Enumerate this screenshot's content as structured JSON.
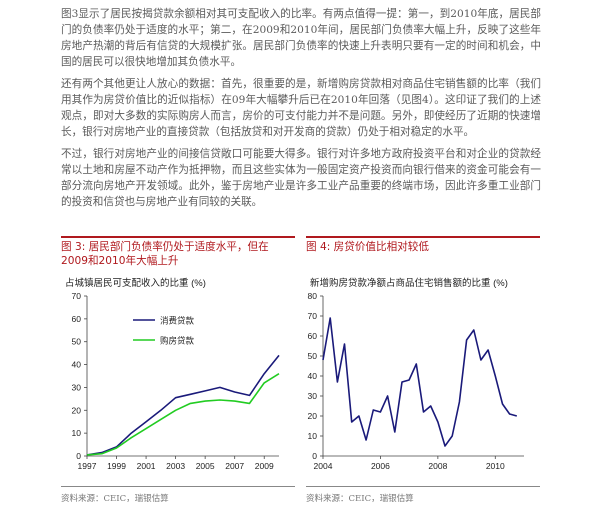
{
  "paragraphs": [
    "图3显示了居民按揭贷款余额相对其可支配收入的比率。有两点值得一提：第一，到2010年底，居民部门的负债率仍处于适度的水平；第二，在2009和2010年间，居民部门负债率大幅上升，反映了这些年房地产热潮的背后有信贷的大规模扩张。居民部门负债率的快速上升表明只要有一定的时间和机会，中国的居民可以很快地增加其负债水平。",
    "还有两个其他更让人放心的数据：首先，很重要的是，新增购房贷款相对商品住宅销售额的比率（我们用其作为房贷价值比的近似指标）在09年大幅攀升后已在2010年回落（见图4）。这印证了我们的上述观点，即对大多数的实际购房人而言，房价的可支付能力并不是问题。另外，即使经历了近期的快速增长，银行对房地产业的直接贷款（包括放贷和对开发商的贷款）仍处于相对稳定的水平。",
    "不过，银行对房地产业的间接信贷敞口可能要大得多。银行对许多地方政府投资平台和对企业的贷款经常以土地和房屋不动产作为抵押物，而且这些实体为一般固定资产投资而向银行借来的资金可能会有一部分流向房地产开发领域。此外，鉴于房地产业是许多工业产品重要的终端市场，因此许多重工业部门的投资和信贷也与房地产业有同较的关联。"
  ],
  "figures": {
    "fig3": {
      "title": "图 3: 居民部门负债率仍处于适度水平，但在2009和2010年大幅上升",
      "source": "资料来源：CEIC，瑞银估算",
      "accent": "#b0191e"
    },
    "fig4": {
      "title": "图 4: 房贷价值比相对较低",
      "source": "资料来源：CEIC，瑞银估算",
      "accent": "#b0191e"
    }
  },
  "chart_data": [
    {
      "type": "line",
      "title": "占城镇居民可支配收入的比重 (%)",
      "xlabel": "",
      "ylabel": "",
      "ylim": [
        0,
        70
      ],
      "xlim": [
        1997,
        2010
      ],
      "yticks": [
        "0",
        "10",
        "20",
        "30",
        "40",
        "50",
        "60",
        "70"
      ],
      "xticks": [
        "1997",
        "1999",
        "2001",
        "2003",
        "2005",
        "2007",
        "2009"
      ],
      "grid": false,
      "legend": "upper-left",
      "series": [
        {
          "name": "消费贷款",
          "color": "#1a1a7a",
          "x": [
            1997,
            1998,
            1999,
            2000,
            2001,
            2002,
            2003,
            2004,
            2005,
            2006,
            2007,
            2008,
            2009,
            2010
          ],
          "values": [
            0.5,
            1.5,
            4,
            10,
            15,
            20,
            25.5,
            27,
            28.5,
            30,
            28,
            26.5,
            36,
            44
          ]
        },
        {
          "name": "购房贷款",
          "color": "#22cc22",
          "x": [
            1997,
            1998,
            1999,
            2000,
            2001,
            2002,
            2003,
            2004,
            2005,
            2006,
            2007,
            2008,
            2009,
            2010
          ],
          "values": [
            0.5,
            1,
            3.5,
            8,
            12,
            16,
            20,
            23,
            24,
            24.5,
            24,
            23,
            32,
            36
          ]
        }
      ]
    },
    {
      "type": "line",
      "title": "新增购房贷款净额占商品住宅销售额的比重 (%)",
      "xlabel": "",
      "ylabel": "",
      "ylim": [
        0,
        80
      ],
      "xlim": [
        2004,
        2011
      ],
      "yticks": [
        "0",
        "10",
        "20",
        "30",
        "40",
        "50",
        "60",
        "70",
        "80"
      ],
      "xticks": [
        "2004",
        "2006",
        "2008",
        "2010"
      ],
      "grid": false,
      "legend": "none",
      "series": [
        {
          "name": "",
          "color": "#1a1a7a",
          "x": [
            2004.0,
            2004.25,
            2004.5,
            2004.75,
            2005.0,
            2005.25,
            2005.5,
            2005.75,
            2006.0,
            2006.25,
            2006.5,
            2006.75,
            2007.0,
            2007.25,
            2007.5,
            2007.75,
            2008.0,
            2008.25,
            2008.5,
            2008.75,
            2009.0,
            2009.25,
            2009.5,
            2009.75,
            2010.0,
            2010.25,
            2010.5,
            2010.75
          ],
          "values": [
            48,
            69,
            37,
            56,
            17,
            20,
            8,
            23,
            22,
            30,
            12,
            37,
            38,
            46,
            22,
            25,
            17,
            5,
            10,
            27,
            58,
            63,
            48,
            53,
            40,
            26,
            21,
            20
          ]
        }
      ]
    }
  ]
}
